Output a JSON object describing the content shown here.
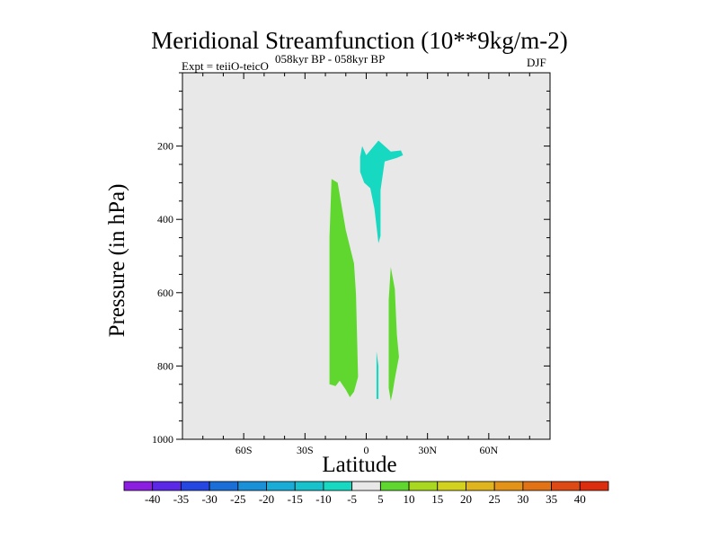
{
  "chart_data": {
    "type": "contour",
    "title": "Meridional Streamfunction (10**9kg/m-2)",
    "subtitle": "058kyr BP - 058kyr BP",
    "experiment": "Expt = teiiO-teicO",
    "season": "DJF",
    "xlabel": "Latitude",
    "ylabel": "Pressure (in hPa)",
    "xlim": [
      -90,
      90
    ],
    "ylim": [
      1000,
      0
    ],
    "xticks": [
      -60,
      -30,
      0,
      30,
      60
    ],
    "xtick_labels": [
      "60S",
      "30S",
      "0",
      "30N",
      "60N"
    ],
    "yticks": [
      200,
      400,
      600,
      800,
      1000
    ],
    "ytick_labels": [
      "200",
      "400",
      "600",
      "800",
      "1000"
    ],
    "background_color": "#e8e8e8",
    "regions": [
      {
        "level": "-10 to -5",
        "color": "#17d8c0",
        "points": [
          [
            -3,
            230
          ],
          [
            -2,
            200
          ],
          [
            0,
            225
          ],
          [
            6,
            185
          ],
          [
            12,
            215
          ],
          [
            17,
            212
          ],
          [
            18,
            225
          ],
          [
            15,
            232
          ],
          [
            9,
            242
          ],
          [
            7,
            320
          ],
          [
            7,
            445
          ],
          [
            6,
            465
          ],
          [
            4,
            370
          ],
          [
            2,
            315
          ],
          [
            -1,
            300
          ],
          [
            -3,
            270
          ]
        ]
      },
      {
        "level": "5 to 10",
        "color": "#5fd72e",
        "points": [
          [
            -17,
            290
          ],
          [
            -14,
            300
          ],
          [
            -10,
            430
          ],
          [
            -6,
            520
          ],
          [
            -5,
            605
          ],
          [
            -4,
            830
          ],
          [
            -6,
            870
          ],
          [
            -8,
            885
          ],
          [
            -10,
            865
          ],
          [
            -13,
            840
          ],
          [
            -15,
            855
          ],
          [
            -18,
            850
          ],
          [
            -18,
            700
          ],
          [
            -18,
            450
          ]
        ]
      },
      {
        "level": "5 to 10",
        "color": "#5fd72e",
        "points": [
          [
            12,
            530
          ],
          [
            14,
            590
          ],
          [
            15,
            715
          ],
          [
            16,
            775
          ],
          [
            14,
            835
          ],
          [
            13,
            870
          ],
          [
            12,
            895
          ],
          [
            11,
            860
          ],
          [
            11,
            760
          ],
          [
            11,
            620
          ]
        ]
      },
      {
        "level": "-10 to -5",
        "color": "#17d8c0",
        "points": [
          [
            5,
            760
          ],
          [
            6,
            800
          ],
          [
            6,
            890
          ],
          [
            5,
            890
          ]
        ]
      }
    ],
    "colorbar": {
      "labels": [
        "-40",
        "-35",
        "-30",
        "-25",
        "-20",
        "-15",
        "-10",
        "-5",
        "5",
        "10",
        "15",
        "20",
        "25",
        "30",
        "35",
        "40"
      ],
      "colors": [
        "#8b1ee0",
        "#5a28e6",
        "#2646e2",
        "#1a6ed8",
        "#1990d8",
        "#19acd6",
        "#17c2cc",
        "#17d8c0",
        "#e8e8e8",
        "#5fd72e",
        "#a8d820",
        "#d2d21e",
        "#e0b41c",
        "#e39418",
        "#e27216",
        "#de4a14",
        "#dc2e0e"
      ]
    }
  }
}
